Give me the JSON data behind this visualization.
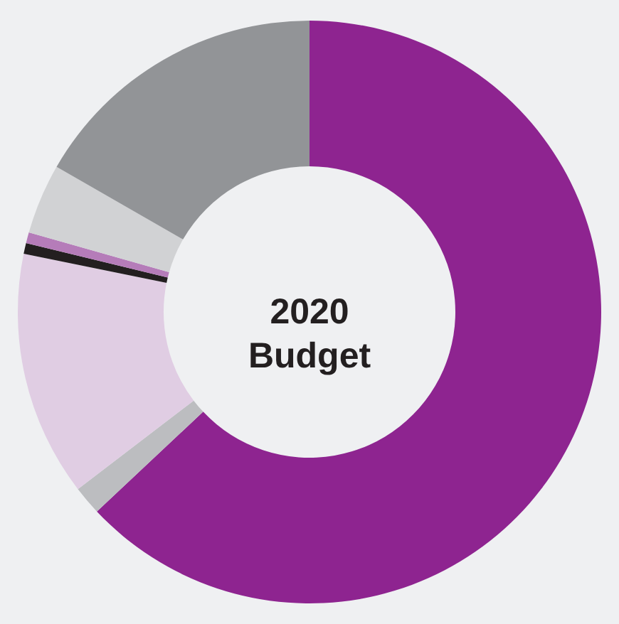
{
  "chart_data": {
    "type": "donut",
    "title": "2020 Budget",
    "categories": [
      null,
      null,
      null,
      null,
      null,
      null,
      null
    ],
    "values": [
      63.0,
      1.6,
      13.6,
      0.6,
      0.6,
      3.9,
      16.7
    ],
    "colors": [
      "#8e2490",
      "#bcbdc0",
      "#e0cde3",
      "#231f20",
      "#b57cb9",
      "#d1d2d4",
      "#929497"
    ]
  }
}
